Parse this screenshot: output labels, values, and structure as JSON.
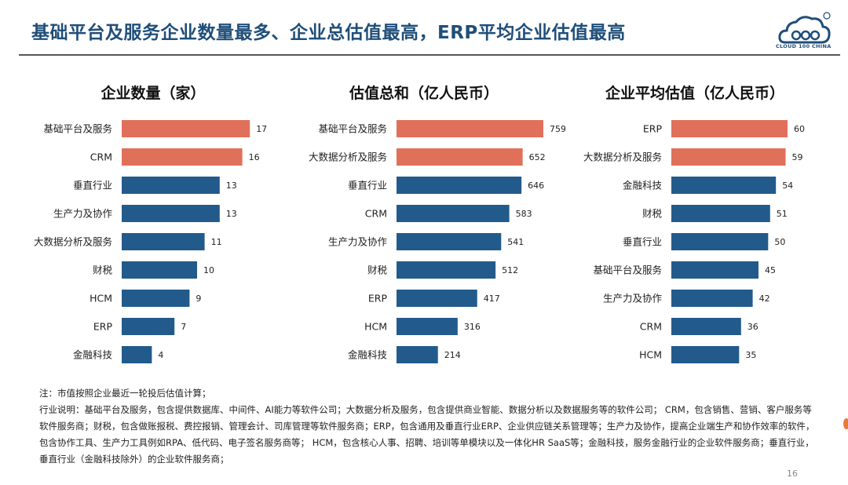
{
  "header": {
    "title": "基础平台及服务企业数量最多、企业总估值最高，ERP平均企业估值最高",
    "logo_text": "CLOUD 100 CHINA"
  },
  "colors": {
    "highlight": "#e0705a",
    "normal": "#225a8c",
    "title": "#1f4e79"
  },
  "chart_data": [
    {
      "type": "bar",
      "orientation": "horizontal",
      "title": "企业数量（家）",
      "categories": [
        "基础平台及服务",
        "CRM",
        "垂直行业",
        "生产力及协作",
        "大数据分析及服务",
        "财税",
        "HCM",
        "ERP",
        "金融科技"
      ],
      "values": [
        17,
        16,
        13,
        13,
        11,
        10,
        9,
        7,
        4
      ],
      "highlight_count": 2,
      "xlim": [
        0,
        17.5
      ]
    },
    {
      "type": "bar",
      "orientation": "horizontal",
      "title": "估值总和（亿人民币）",
      "categories": [
        "基础平台及服务",
        "大数据分析及服务",
        "垂直行业",
        "CRM",
        "生产力及协作",
        "财税",
        "ERP",
        "HCM",
        "金融科技"
      ],
      "values": [
        759,
        652,
        646,
        583,
        541,
        512,
        417,
        316,
        214
      ],
      "highlight_count": 2,
      "xlim": [
        0,
        759
      ]
    },
    {
      "type": "bar",
      "orientation": "horizontal",
      "title": "企业平均估值（亿人民币）",
      "categories": [
        "ERP",
        "大数据分析及服务",
        "金融科技",
        "财税",
        "垂直行业",
        "基础平台及服务",
        "生产力及协作",
        "CRM",
        "HCM"
      ],
      "values": [
        60,
        59,
        54,
        51,
        50,
        45,
        42,
        36,
        35
      ],
      "highlight_count": 2,
      "xlim": [
        0,
        60
      ]
    }
  ],
  "notes": {
    "line1": "注：市值按照企业最近一轮投后估值计算；",
    "line2": "行业说明：基础平台及服务，包含提供数据库、中间件、AI能力等软件公司；大数据分析及服务，包含提供商业智能、数据分析以及数据服务等的软件公司； CRM，包含销售、营销、客户服务等",
    "line3": "软件服务商；财税，包含做账报税、费控报销、管理会计、司库管理等软件服务商；ERP，包含通用及垂直行业ERP、企业供应链关系管理等；生产力及协作，提高企业端生产和协作效率的软件，",
    "line4": "包含协作工具、生产力工具例如RPA、低代码、电子签名服务商等； HCM，包含核心人事、招聘、培训等单模块以及一体化HR SaaS等；金融科技，服务金融行业的企业软件服务商；垂直行业，",
    "line5": "垂直行业（金融科技除外）的企业软件服务商；"
  },
  "page_number": "16"
}
